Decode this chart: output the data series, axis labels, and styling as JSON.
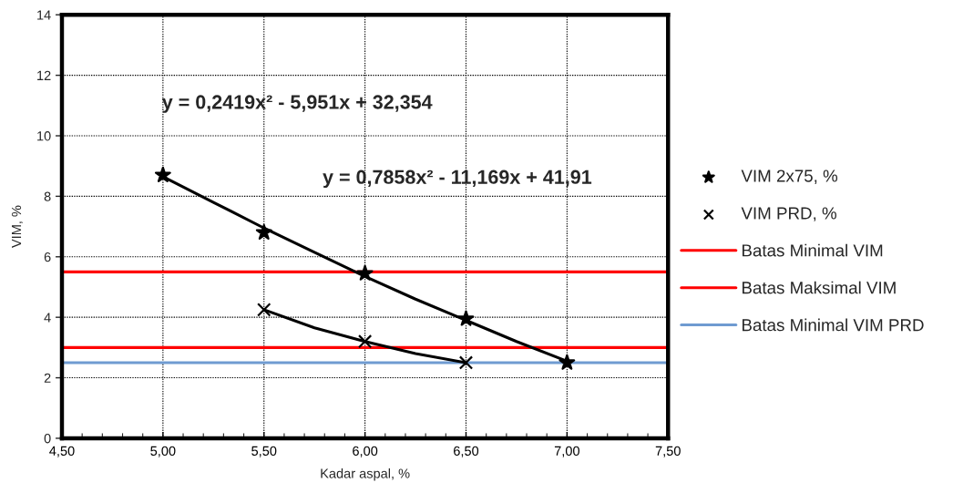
{
  "chart_data": {
    "type": "scatter",
    "xlabel": "Kadar aspal, %",
    "ylabel": "VIM, %",
    "annotations": [
      "y = 0,2419x² - 5,951x + 32,354",
      "y = 0,7858x² - 11,169x + 41,91"
    ],
    "series": [
      {
        "name": "VIM 2x75, %",
        "marker": "star",
        "color": "#000000",
        "x": [
          5.0,
          5.5,
          6.0,
          6.5,
          7.0
        ],
        "values": [
          8.7,
          6.8,
          5.45,
          3.95,
          2.5
        ]
      },
      {
        "name": "VIM PRD, %",
        "marker": "cross",
        "color": "#000000",
        "x": [
          5.5,
          6.0,
          6.5
        ],
        "values": [
          4.25,
          3.2,
          2.5
        ]
      },
      {
        "type": "line",
        "color": "#000000",
        "x": [
          5.0,
          5.25,
          5.5,
          5.75,
          6.0,
          6.25,
          6.5,
          6.75,
          7.0
        ],
        "values": [
          8.65,
          7.8,
          6.95,
          6.15,
          5.35,
          4.6,
          3.9,
          3.2,
          2.55
        ]
      },
      {
        "type": "line",
        "color": "#000000",
        "x": [
          5.5,
          5.75,
          6.0,
          6.25,
          6.5
        ],
        "values": [
          4.25,
          3.65,
          3.2,
          2.8,
          2.5
        ]
      }
    ],
    "ref_lines": [
      {
        "axis": "y",
        "value": 3,
        "label": "Batas Minimal VIM",
        "color": "#ff0000"
      },
      {
        "axis": "y",
        "value": 5.5,
        "label": "Batas Maksimal VIM",
        "color": "#ff0000"
      },
      {
        "axis": "y",
        "value": 2.5,
        "label": "Batas Minimal VIM PRD",
        "color": "#6f9bd1"
      }
    ],
    "xlim": [
      4.5,
      7.5
    ],
    "xticks": [
      {
        "value": 4.5,
        "label": "4,50"
      },
      {
        "value": 5.0,
        "label": "5,00"
      },
      {
        "value": 5.5,
        "label": "5,50"
      },
      {
        "value": 6.0,
        "label": "6,00"
      },
      {
        "value": 6.5,
        "label": "6,50"
      },
      {
        "value": 7.0,
        "label": "7,00"
      },
      {
        "value": 7.5,
        "label": "7,50"
      }
    ],
    "ylim": [
      0,
      14
    ],
    "yticks": [
      0,
      2,
      4,
      6,
      8,
      10,
      12,
      14
    ],
    "grid": true,
    "legend": "right",
    "line_style": "solid"
  }
}
